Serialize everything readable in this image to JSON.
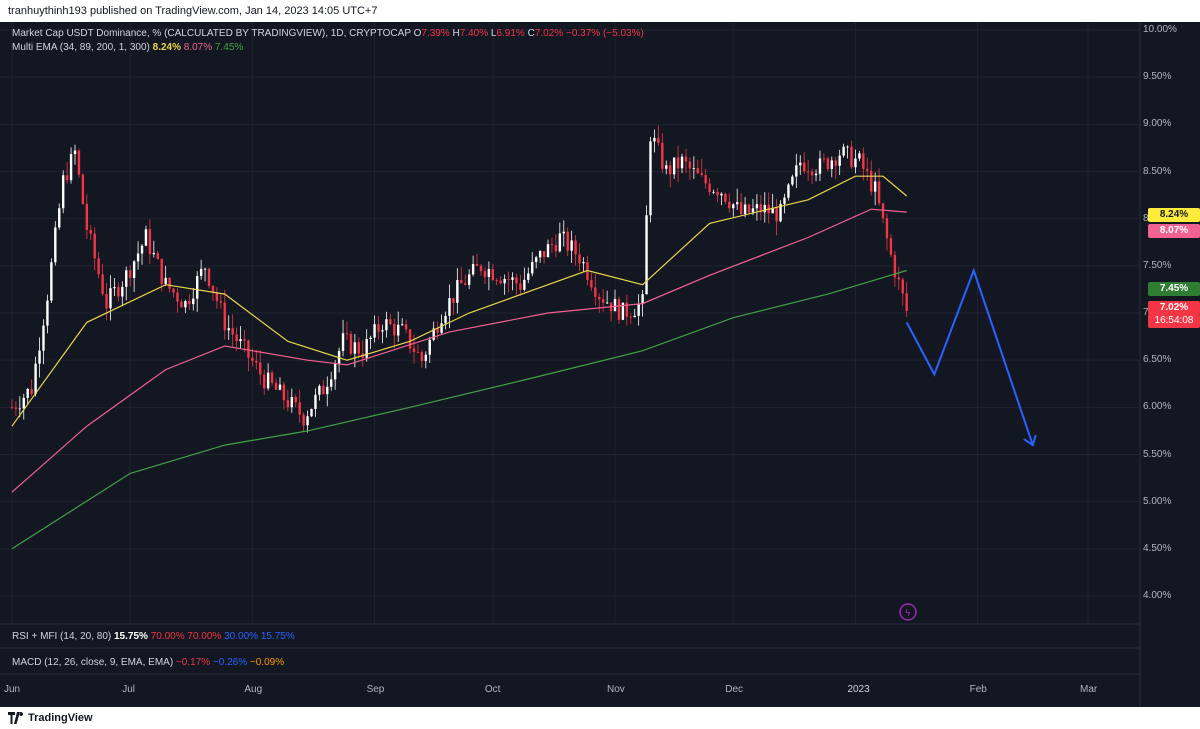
{
  "header": {
    "text": "tranhuythinh193 published on TradingView.com, Jan 14, 2023 14:05 UTC+7"
  },
  "legend": {
    "symbol": "Market Cap USDT Dominance, % (CALCULATED BY TRADINGVIEW), 1D, CRYPTOCAP",
    "o_label": "O",
    "o_value": "7.39%",
    "h_label": "H",
    "h_value": "7.40%",
    "l_label": "L",
    "l_value": "6.91%",
    "c_label": "C",
    "c_value": "7.02%",
    "change": "−0.37% (−5.03%)",
    "ema_name": "Multi EMA (34, 89, 200, 1, 300)",
    "ema1": "8.24%",
    "ema2": "8.07%",
    "ema3": "7.45%",
    "rsi_name": "RSI + MFI (14, 20, 80)",
    "rsi_v1": "15.75%",
    "rsi_v2": "70.00%",
    "rsi_v3": "70.00%",
    "rsi_v4": "30.00%",
    "rsi_v5": "15.75%",
    "macd_name": "MACD (12, 26, close, 9, EMA, EMA)",
    "macd_v1": "−0.17%",
    "macd_v2": "−0.26%",
    "macd_v3": "−0.09%"
  },
  "price_labels": {
    "ema1": "8.24%",
    "ema2": "8.07%",
    "ema3": "7.45%",
    "last": "7.02%",
    "countdown": "16:54:08"
  },
  "colors": {
    "background": "#131722",
    "up": "#ffffff",
    "down": "#f23645",
    "ema34": "#e8d44d",
    "ema89": "#f06292",
    "ema200": "#43a047",
    "projection": "#2962ff"
  },
  "footer": {
    "brand": "TradingView"
  },
  "chart_data": {
    "type": "candlestick",
    "y_unit": "%",
    "ylim": [
      3.7,
      10.1
    ],
    "yticks": [
      "10.00%",
      "9.50%",
      "9.00%",
      "8.50%",
      "8.00%",
      "7.50%",
      "7.00%",
      "6.50%",
      "6.00%",
      "5.50%",
      "5.00%",
      "4.50%",
      "4.00%"
    ],
    "xticks": [
      "Jun",
      "Jul",
      "Aug",
      "Sep",
      "Oct",
      "Nov",
      "Dec",
      "2023",
      "Feb",
      "Mar"
    ],
    "waypoints": [
      [
        "2022-06-01",
        6.0
      ],
      [
        "2022-06-06",
        6.2
      ],
      [
        "2022-06-10",
        7.2
      ],
      [
        "2022-06-14",
        8.4
      ],
      [
        "2022-06-17",
        8.7
      ],
      [
        "2022-06-20",
        7.9
      ],
      [
        "2022-06-25",
        7.1
      ],
      [
        "2022-06-30",
        7.4
      ],
      [
        "2022-07-05",
        7.8
      ],
      [
        "2022-07-10",
        7.3
      ],
      [
        "2022-07-15",
        7.1
      ],
      [
        "2022-07-20",
        7.5
      ],
      [
        "2022-07-25",
        6.9
      ],
      [
        "2022-07-30",
        6.6
      ],
      [
        "2022-08-04",
        6.3
      ],
      [
        "2022-08-09",
        6.1
      ],
      [
        "2022-08-14",
        5.9
      ],
      [
        "2022-08-19",
        6.2
      ],
      [
        "2022-08-24",
        6.7
      ],
      [
        "2022-08-29",
        6.6
      ],
      [
        "2022-09-03",
        6.9
      ],
      [
        "2022-09-08",
        6.8
      ],
      [
        "2022-09-13",
        6.5
      ],
      [
        "2022-09-18",
        7.0
      ],
      [
        "2022-09-23",
        7.3
      ],
      [
        "2022-09-28",
        7.5
      ],
      [
        "2022-10-03",
        7.4
      ],
      [
        "2022-10-08",
        7.3
      ],
      [
        "2022-10-13",
        7.6
      ],
      [
        "2022-10-18",
        7.8
      ],
      [
        "2022-10-23",
        7.6
      ],
      [
        "2022-10-28",
        7.2
      ],
      [
        "2022-11-03",
        7.0
      ],
      [
        "2022-11-08",
        7.1
      ],
      [
        "2022-11-10",
        8.9
      ],
      [
        "2022-11-14",
        8.5
      ],
      [
        "2022-11-18",
        8.6
      ],
      [
        "2022-11-23",
        8.4
      ],
      [
        "2022-11-28",
        8.3
      ],
      [
        "2022-12-03",
        8.05
      ],
      [
        "2022-12-08",
        8.1
      ],
      [
        "2022-12-13",
        8.05
      ],
      [
        "2022-12-18",
        8.6
      ],
      [
        "2022-12-23",
        8.55
      ],
      [
        "2022-12-28",
        8.7
      ],
      [
        "2023-01-02",
        8.6
      ],
      [
        "2023-01-06",
        8.3
      ],
      [
        "2023-01-10",
        7.6
      ],
      [
        "2023-01-14",
        7.02
      ]
    ],
    "ema34": [
      [
        "2022-06-01",
        5.8
      ],
      [
        "2022-06-20",
        6.9
      ],
      [
        "2022-07-10",
        7.3
      ],
      [
        "2022-07-25",
        7.2
      ],
      [
        "2022-08-10",
        6.7
      ],
      [
        "2022-08-25",
        6.5
      ],
      [
        "2022-09-10",
        6.7
      ],
      [
        "2022-09-25",
        7.0
      ],
      [
        "2022-10-15",
        7.3
      ],
      [
        "2022-10-25",
        7.45
      ],
      [
        "2022-11-08",
        7.3
      ],
      [
        "2022-11-25",
        7.95
      ],
      [
        "2022-12-10",
        8.1
      ],
      [
        "2022-12-20",
        8.2
      ],
      [
        "2023-01-01",
        8.45
      ],
      [
        "2023-01-08",
        8.45
      ],
      [
        "2023-01-14",
        8.24
      ]
    ],
    "ema89": [
      [
        "2022-06-01",
        5.1
      ],
      [
        "2022-06-20",
        5.8
      ],
      [
        "2022-07-10",
        6.4
      ],
      [
        "2022-07-25",
        6.65
      ],
      [
        "2022-08-15",
        6.5
      ],
      [
        "2022-08-25",
        6.45
      ],
      [
        "2022-09-20",
        6.8
      ],
      [
        "2022-10-15",
        7.0
      ],
      [
        "2022-11-08",
        7.1
      ],
      [
        "2022-11-25",
        7.4
      ],
      [
        "2022-12-20",
        7.8
      ],
      [
        "2023-01-05",
        8.1
      ],
      [
        "2023-01-14",
        8.07
      ]
    ],
    "ema200": [
      [
        "2022-06-01",
        4.5
      ],
      [
        "2022-07-01",
        5.3
      ],
      [
        "2022-07-25",
        5.6
      ],
      [
        "2022-08-15",
        5.75
      ],
      [
        "2022-09-10",
        6.0
      ],
      [
        "2022-10-10",
        6.3
      ],
      [
        "2022-11-08",
        6.6
      ],
      [
        "2022-12-01",
        6.95
      ],
      [
        "2022-12-25",
        7.2
      ],
      [
        "2023-01-14",
        7.45
      ]
    ],
    "projection": [
      [
        "2023-01-14",
        6.9
      ],
      [
        "2023-01-21",
        6.35
      ],
      [
        "2023-01-31",
        7.45
      ],
      [
        "2023-02-15",
        5.6
      ]
    ],
    "last_price": 7.02
  }
}
